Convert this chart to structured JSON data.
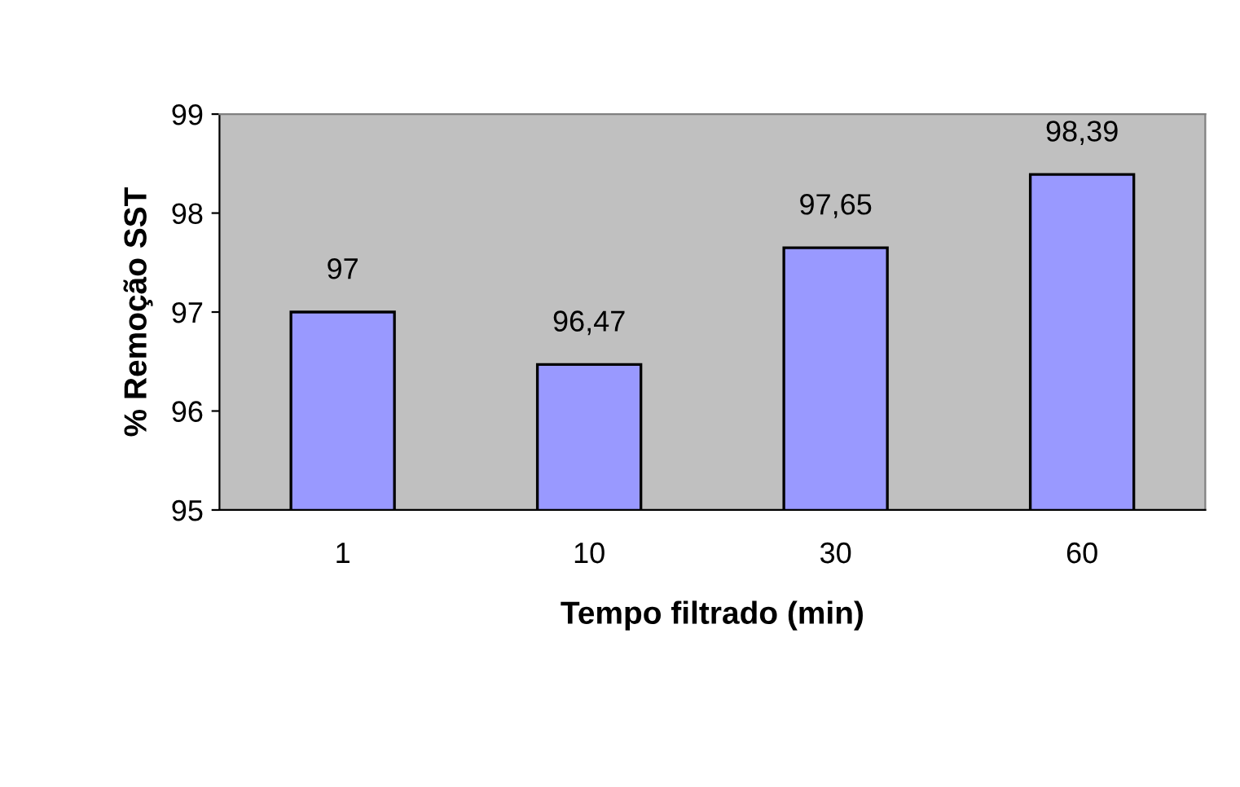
{
  "chart_data": {
    "type": "bar",
    "xlabel": "Tempo filtrado (min)",
    "ylabel": "% Remoção SST",
    "categories": [
      "1",
      "10",
      "30",
      "60"
    ],
    "values": [
      97,
      96.47,
      97.65,
      98.39
    ],
    "value_labels": [
      "97",
      "96,47",
      "97,65",
      "98,39"
    ],
    "color": "#9999ff",
    "ylim": [
      95,
      99
    ],
    "yticks": [
      95,
      96,
      97,
      98,
      99
    ],
    "grid": false,
    "legend": false
  }
}
